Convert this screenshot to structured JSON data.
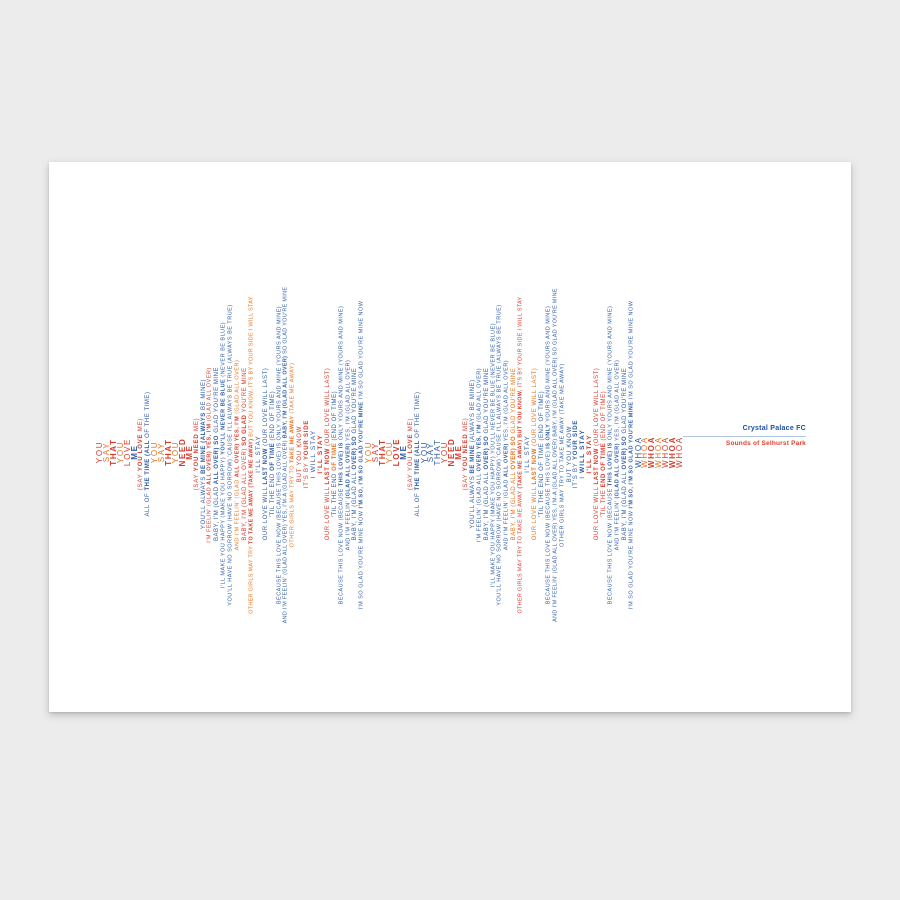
{
  "credit": {
    "title": "Crystal Palace FC",
    "subtitle": "Sounds of Selhurst Park"
  },
  "colors": {
    "background": "#ebeceb",
    "paper": "#ffffff",
    "lyric_red": "#d93a2c",
    "lyric_orange": "#e5731c",
    "lyric_blue": "#2d5ba6",
    "credit_title_blue": "#1c4f9f",
    "credit_subtitle_red": "#e23c2a",
    "credit_rule_blue": "#aec7e2"
  },
  "lyrics": [
    {
      "parts": [
        [
          "YOU",
          "r",
          0
        ]
      ]
    },
    {
      "parts": [
        [
          "SAY",
          "o",
          0
        ]
      ]
    },
    {
      "parts": [
        [
          "THAT",
          "r",
          1
        ]
      ]
    },
    {
      "parts": [
        [
          "YOU",
          "o",
          0
        ]
      ]
    },
    {
      "parts": [
        [
          "LOVE",
          "r",
          0
        ]
      ]
    },
    {
      "parts": [
        [
          "ME",
          "b",
          1
        ]
      ]
    },
    {
      "parts": [
        [
          "(SAY ",
          "r",
          0
        ],
        [
          "YOU LOVE",
          "r",
          1
        ],
        [
          " ME)",
          "r",
          0
        ]
      ]
    },
    {
      "parts": [
        [
          "ALL OF ",
          "b",
          0
        ],
        [
          "THE TIME (ALL",
          "b",
          1
        ],
        [
          " OF THE TIME)",
          "b",
          0
        ]
      ]
    },
    {
      "parts": [
        [
          "YOU",
          "o",
          0
        ]
      ]
    },
    {
      "parts": [
        [
          "SAY",
          "o",
          0
        ]
      ]
    },
    {
      "parts": [
        [
          "THAT",
          "r",
          1
        ]
      ]
    },
    {
      "parts": [
        [
          "YOU",
          "o",
          0
        ]
      ]
    },
    {
      "parts": [
        [
          "NEED",
          "r",
          1
        ]
      ]
    },
    {
      "parts": [
        [
          "ME",
          "r",
          1
        ]
      ]
    },
    {
      "parts": [
        [
          "(SAY ",
          "r",
          0
        ],
        [
          "YOU NEED",
          "r",
          1
        ],
        [
          " ME)",
          "r",
          0
        ]
      ]
    },
    {
      "parts": [
        [
          "YOU'LL ALWAYS ",
          "b",
          0
        ],
        [
          "BE MINE (ALWAYS",
          "b",
          1
        ],
        [
          " BE MINE)",
          "b",
          0
        ]
      ]
    },
    {
      "parts": [
        [
          "I'M FEELIN' (GLAD ",
          "r",
          0
        ],
        [
          "ALL OVER) YES, I'M",
          "r",
          1
        ],
        [
          " (GLAD ALL OVER)",
          "r",
          0
        ]
      ]
    },
    {
      "parts": [
        [
          "BABY, I'M (GLAD ",
          "b",
          0
        ],
        [
          "ALL OVER) SO",
          "b",
          1
        ],
        [
          " GLAD YOU'RE MINE",
          "b",
          0
        ]
      ]
    },
    {
      "parts": [
        [
          "I'LL MAKE YOU HAPPY (MAKE YOU HAPPY) ",
          "b",
          0
        ],
        [
          "YOU'LL NEVER BE BLUE",
          "b",
          1
        ],
        [
          " (NEVER BE BLUE)",
          "b",
          0
        ]
      ]
    },
    {
      "parts": [
        [
          "YOU'LL HAVE NO SORROW (HAVE NO SORROW) 'CAUSE I'LL ALWAYS BE TRUE (ALWAYS BE TRUE)",
          "b",
          0
        ]
      ]
    },
    {
      "parts": [
        [
          "AND I'M FEELIN' (GLAD ",
          "o",
          0
        ],
        [
          "ALL OVER) YES, I'M",
          "r",
          1
        ],
        [
          " (GLAD ALL OVER)",
          "o",
          0
        ]
      ]
    },
    {
      "parts": [
        [
          "BABY, I'M (GLAD ALL OVER) ",
          "r",
          0
        ],
        [
          "SO GLAD",
          "r",
          1
        ],
        [
          " YOU'RE MINE",
          "r",
          0
        ]
      ]
    },
    {
      "parts": [
        [
          "OTHER GIRLS MAY TRY ",
          "o",
          0
        ],
        [
          "TO TAKE ME AWAY (TAKE ME AWAY)",
          "r",
          1
        ],
        [
          " BUT YOU KNOW, IT'S BY YOUR SIDE I WILL STAY",
          "o",
          0
        ]
      ]
    },
    {
      "parts": [
        [
          "I'LL STAY",
          "b",
          0
        ]
      ]
    },
    {
      "parts": [
        [
          "OUR LOVE WILL ",
          "b",
          0
        ],
        [
          "LAST NOW",
          "b",
          1
        ],
        [
          " (OUR LOVE WILL LAST)",
          "b",
          0
        ]
      ]
    },
    {
      "parts": [
        [
          "'TIL THE END ",
          "b",
          0
        ],
        [
          "OF TIME",
          "b",
          1
        ],
        [
          " (END OF TIME)",
          "b",
          0
        ]
      ]
    },
    {
      "parts": [
        [
          "BECAUSE THIS LOVE NOW (BECAUSE THIS LOVE) IS ONLY YOURS AND MINE (YOURS AND MINE)",
          "b",
          0
        ]
      ]
    },
    {
      "parts": [
        [
          "AND I'M FEELIN' (GLAD ALL OVER) YES, I'M-A (GLAD ALL OVER) ",
          "b",
          0
        ],
        [
          "BABY, I'M (GLAD ALL OVER)",
          "b",
          1
        ],
        [
          " SO GLAD YOU'RE MINE",
          "b",
          0
        ]
      ]
    },
    {
      "parts": [
        [
          "OTHER GIRLS MAY TRY TO ",
          "o",
          0
        ],
        [
          "TAKE ME AWAY",
          "o",
          1
        ],
        [
          " (TAKE ME AWAY)",
          "o",
          0
        ]
      ]
    },
    {
      "parts": [
        [
          "BUT YOU KNOW",
          "r",
          0
        ]
      ]
    },
    {
      "parts": [
        [
          "IT'S BY ",
          "r",
          0
        ],
        [
          "YOUR SIDE",
          "r",
          1
        ]
      ]
    },
    {
      "parts": [
        [
          "I WILL STAY",
          "b",
          0
        ]
      ]
    },
    {
      "parts": [
        [
          "I'LL STAY",
          "r",
          1
        ]
      ]
    },
    {
      "parts": [
        [
          "OUR LOVE WILL ",
          "r",
          0
        ],
        [
          "LAST NOW",
          "r",
          1
        ],
        [
          " (OUR LOVE WILL LAST)",
          "r",
          0
        ]
      ]
    },
    {
      "parts": [
        [
          "'TIL THE END ",
          "b",
          0
        ],
        [
          "OF TIME",
          "o",
          1
        ],
        [
          " (END OF TIME)",
          "b",
          0
        ]
      ]
    },
    {
      "parts": [
        [
          "BECAUSE THIS LOVE NOW (BECAUSE ",
          "b",
          0
        ],
        [
          "THIS LOVE) IS",
          "b",
          1
        ],
        [
          " ONLY YOURS AND MINE (YOURS AND MINE)",
          "b",
          0
        ]
      ]
    },
    {
      "parts": [
        [
          "AND I'M FEELIN' ",
          "b",
          0
        ],
        [
          "(GLAD ALL OVER)",
          "b",
          1
        ],
        [
          " YES, I'M (GLAD ALL OVER)",
          "b",
          0
        ]
      ]
    },
    {
      "parts": [
        [
          "BABY, I'M (GLAD ALL ",
          "b",
          0
        ],
        [
          "OVER) SO",
          "b",
          1
        ],
        [
          " GLAD YOU'RE MINE",
          "b",
          0
        ]
      ]
    },
    {
      "parts": [
        [
          "I'M SO GLAD YOU'RE MINE NOW ",
          "b",
          0
        ],
        [
          "I'M SO, I'M SO GLAD YOU'RE MINE",
          "b",
          1
        ],
        [
          " I'M SO GLAD YOU'RE MINE NOW",
          "b",
          0
        ]
      ]
    },
    {
      "parts": [
        [
          "YOU",
          "o",
          0
        ]
      ]
    },
    {
      "parts": [
        [
          "SAY",
          "r",
          0
        ]
      ]
    },
    {
      "parts": [
        [
          "THAT",
          "r",
          1
        ]
      ]
    },
    {
      "parts": [
        [
          "YOU",
          "o",
          0
        ]
      ]
    },
    {
      "parts": [
        [
          "LOVE",
          "r",
          1
        ]
      ]
    },
    {
      "parts": [
        [
          "ME",
          "b",
          1
        ]
      ]
    },
    {
      "parts": [
        [
          "(SAY YOU ",
          "r",
          0
        ],
        [
          "LOVE",
          "r",
          1
        ],
        [
          " ME)",
          "r",
          0
        ]
      ]
    },
    {
      "parts": [
        [
          "ALL OF ",
          "b",
          0
        ],
        [
          "THE TIME (ALL",
          "b",
          1
        ],
        [
          " OF THE TIME)",
          "b",
          0
        ]
      ]
    },
    {
      "parts": [
        [
          "YOU",
          "b",
          0
        ]
      ]
    },
    {
      "parts": [
        [
          "SAY",
          "b",
          0
        ]
      ]
    },
    {
      "parts": [
        [
          "THAT",
          "b",
          0
        ]
      ]
    },
    {
      "parts": [
        [
          "YOU",
          "r",
          0
        ]
      ]
    },
    {
      "parts": [
        [
          "NEED",
          "r",
          1
        ]
      ]
    },
    {
      "parts": [
        [
          "ME",
          "r",
          1
        ]
      ]
    },
    {
      "parts": [
        [
          "(SAY ",
          "r",
          0
        ],
        [
          "YOU NEED",
          "r",
          1
        ],
        [
          " ME)",
          "r",
          0
        ]
      ]
    },
    {
      "parts": [
        [
          "YOU'LL ALWAYS ",
          "b",
          0
        ],
        [
          "BE MINE",
          "b",
          1
        ],
        [
          " (ALWAYS BE MINE)",
          "b",
          0
        ]
      ]
    },
    {
      "parts": [
        [
          "I'M FEELIN' (GLAD ALL ",
          "b",
          0
        ],
        [
          "OVER) YES, I'M",
          "b",
          1
        ],
        [
          " (GLAD ALL OVER)",
          "b",
          0
        ]
      ]
    },
    {
      "parts": [
        [
          "BABY, I'M (GLAD ALL ",
          "b",
          0
        ],
        [
          "OVER) SO",
          "b",
          1
        ],
        [
          " GLAD YOU'RE MINE",
          "b",
          0
        ]
      ]
    },
    {
      "parts": [
        [
          "I'LL MAKE YOU HAPPY (MAKE YOU HAPPY) YOU'LL NEVER BE BLUE (NEVER BE BLUE)",
          "b",
          0
        ]
      ]
    },
    {
      "parts": [
        [
          "YOU'LL HAVE NO SORROW (HAVE NO SORROW) 'CAUSE I'LL ALWAYS BE TRUE (ALWAYS BE TRUE)",
          "b",
          0
        ]
      ]
    },
    {
      "parts": [
        [
          "AND I'M FEELIN' (GLAD ",
          "b",
          0
        ],
        [
          "ALL OVER)",
          "b",
          1
        ],
        [
          " YES, I'M (GLAD ALL OVER)",
          "b",
          0
        ]
      ]
    },
    {
      "parts": [
        [
          "BABY, I'M (GLAD ALL ",
          "o",
          0
        ],
        [
          "OVER) SO",
          "o",
          1
        ],
        [
          " GLAD YOU'RE MINE",
          "o",
          0
        ]
      ]
    },
    {
      "parts": [
        [
          "OTHER GIRLS MAY TRY TO TAKE ME AWAY ",
          "r",
          0
        ],
        [
          "(TAKE ME AWAY) BUT YOU KNOW,",
          "r",
          1
        ],
        [
          " IT'S BY YOUR SIDE I WILL STAY",
          "r",
          0
        ]
      ]
    },
    {
      "parts": [
        [
          "I'LL STAY",
          "b",
          0
        ]
      ]
    },
    {
      "parts": [
        [
          "OUR LOVE WILL ",
          "o",
          0
        ],
        [
          "LAST NOW",
          "o",
          1
        ],
        [
          " (OUR LOVE WILL LAST)",
          "o",
          0
        ]
      ]
    },
    {
      "parts": [
        [
          "'TIL THE END OF TIME (END OF TIME)",
          "b",
          0
        ]
      ]
    },
    {
      "parts": [
        [
          "BECAUSE THIS LOVE NOW (BECAUSE THIS LOVE) ",
          "b",
          0
        ],
        [
          "IS ONLY",
          "b",
          1
        ],
        [
          " YOURS AND MINE (YOURS AND MINE)",
          "b",
          0
        ]
      ]
    },
    {
      "parts": [
        [
          "AND I'M FEELIN' (GLAD ALL OVER) YES, I'M-A (GLAD ALL OVER) BABY, I'M (GLAD ALL OVER) SO GLAD YOU'RE MINE",
          "b",
          0
        ]
      ]
    },
    {
      "parts": [
        [
          "OTHER GIRLS MAY TRY TO TAKE ME AWAY (TAKE ME AWAY)",
          "b",
          0
        ]
      ]
    },
    {
      "parts": [
        [
          "BUT YOU KNOW",
          "b",
          0
        ]
      ]
    },
    {
      "parts": [
        [
          "IT'S BY ",
          "b",
          0
        ],
        [
          "YOUR SIDE",
          "b",
          1
        ]
      ]
    },
    {
      "parts": [
        [
          "I ",
          "b",
          0
        ],
        [
          "WILL STAY",
          "b",
          1
        ]
      ]
    },
    {
      "parts": [
        [
          "I'LL STAY",
          "r",
          1
        ]
      ]
    },
    {
      "parts": [
        [
          "OUR LOVE WILL ",
          "r",
          0
        ],
        [
          "LAST NOW",
          "r",
          1
        ],
        [
          " (OUR LOVE WILL LAST)",
          "r",
          0
        ]
      ]
    },
    {
      "parts": [
        [
          "'TIL THE ",
          "r",
          0
        ],
        [
          "END OF TIME",
          "r",
          1
        ],
        [
          " (END OF TIME)",
          "r",
          0
        ]
      ]
    },
    {
      "parts": [
        [
          "BECAUSE THIS LOVE NOW (BECAUSE ",
          "b",
          0
        ],
        [
          "THIS LOVE) IS",
          "b",
          1
        ],
        [
          " ONLY YOURS AND MINE (YOURS AND MINE)",
          "b",
          0
        ]
      ]
    },
    {
      "parts": [
        [
          "AND I'M FEELIN' ",
          "b",
          0
        ],
        [
          "(GLAD ALL OVER)",
          "b",
          1
        ],
        [
          " YES, I'M (GLAD ALL OVER)",
          "b",
          0
        ]
      ]
    },
    {
      "parts": [
        [
          "BABY, I'M (GLAD ALL ",
          "b",
          0
        ],
        [
          "OVER) SO",
          "b",
          1
        ],
        [
          " GLAD YOU'RE MINE",
          "b",
          0
        ]
      ]
    },
    {
      "parts": [
        [
          "I'M SO GLAD YOU'RE MINE NOW ",
          "b",
          0
        ],
        [
          "I'M SO, I'M SO GLAD YOU'RE MINE",
          "b",
          1
        ],
        [
          " I'M SO GLAD YOU'RE MINE NOW",
          "b",
          0
        ]
      ]
    },
    {
      "parts": [
        [
          "WHOA",
          "b",
          0
        ]
      ]
    },
    {
      "parts": [
        [
          "WHOA",
          "o",
          0
        ]
      ]
    },
    {
      "parts": [
        [
          "WHOA",
          "r",
          1
        ]
      ]
    },
    {
      "parts": [
        [
          "WHOA",
          "o",
          0
        ]
      ]
    },
    {
      "parts": [
        [
          "WHOA",
          "r",
          0
        ]
      ]
    },
    {
      "parts": [
        [
          "WHOA",
          "r",
          1
        ]
      ]
    },
    {
      "parts": [
        [
          "WHOA",
          "r",
          0
        ]
      ]
    }
  ]
}
